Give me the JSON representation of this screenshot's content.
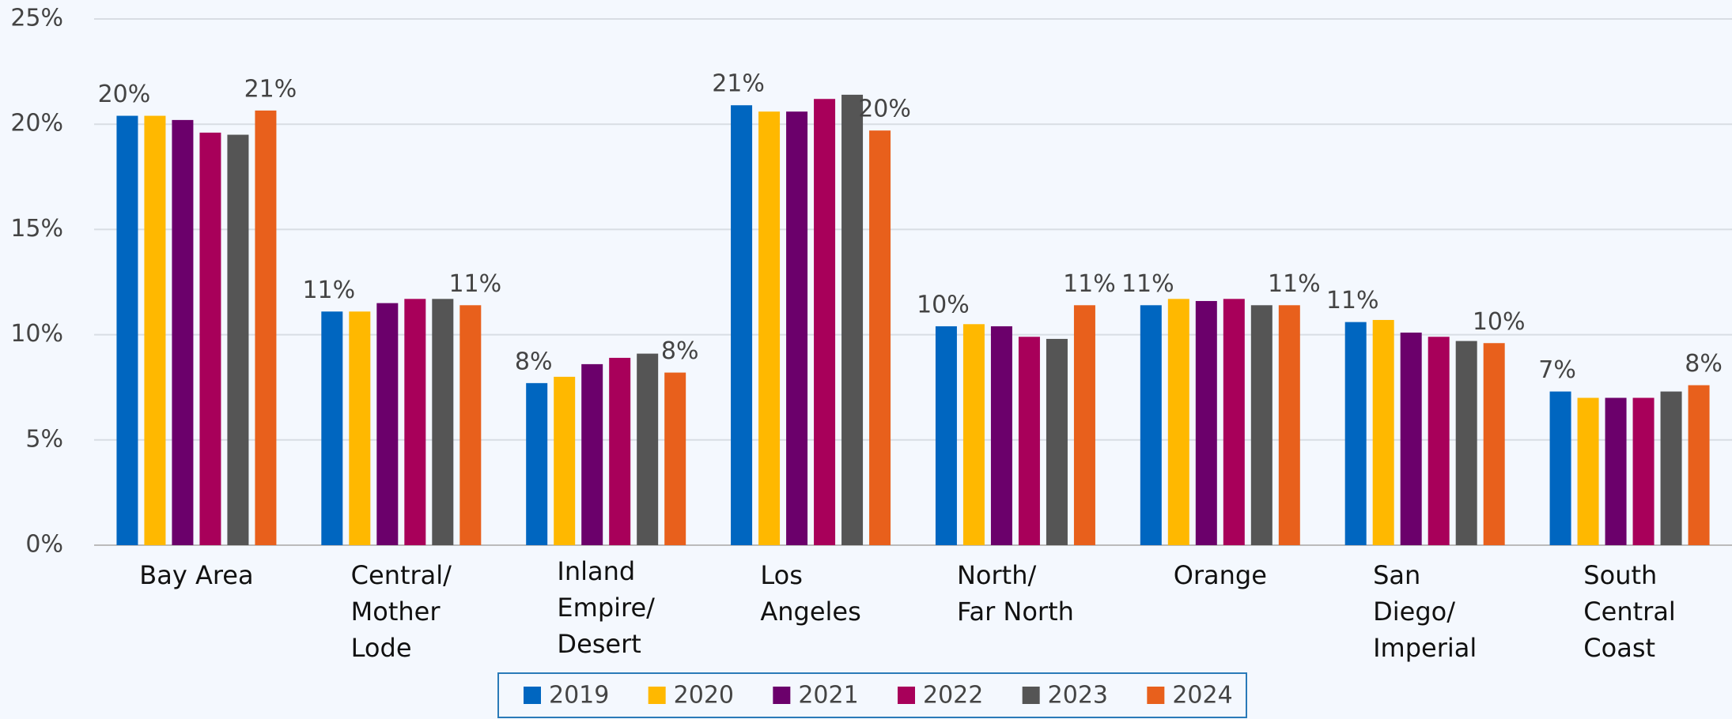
{
  "chart_data": {
    "type": "bar",
    "categories": [
      "Bay Area",
      "Central/\nMother\nLode",
      "Inland\nEmpire/\nDesert",
      "Los\nAngeles",
      "North/\nFar North",
      "Orange",
      "San\nDiego/\nImperial",
      "South\nCentral\nCoast"
    ],
    "series": [
      {
        "name": "2019",
        "color": "#0066c0",
        "values": [
          20.4,
          11.1,
          7.7,
          20.9,
          10.4,
          11.4,
          10.6,
          7.3
        ],
        "value_labels": [
          "20%",
          "11%",
          "8%",
          "21%",
          "10%",
          "11%",
          "11%",
          "7%"
        ]
      },
      {
        "name": "2020",
        "color": "#ffb800",
        "values": [
          20.4,
          11.1,
          8.0,
          20.6,
          10.5,
          11.7,
          10.7,
          7.0
        ]
      },
      {
        "name": "2021",
        "color": "#6b006b",
        "values": [
          20.2,
          11.5,
          8.6,
          20.6,
          10.4,
          11.6,
          10.1,
          7.0
        ]
      },
      {
        "name": "2022",
        "color": "#a8005a",
        "values": [
          19.6,
          11.7,
          8.9,
          21.2,
          9.9,
          11.7,
          9.9,
          7.0
        ]
      },
      {
        "name": "2023",
        "color": "#555555",
        "values": [
          19.5,
          11.7,
          9.1,
          21.4,
          9.8,
          11.4,
          9.7,
          7.3
        ]
      },
      {
        "name": "2024",
        "color": "#e8601c",
        "values": [
          20.65,
          11.4,
          8.2,
          19.7,
          11.4,
          11.4,
          9.6,
          7.6
        ],
        "value_labels": [
          "21%",
          "11%",
          "8%",
          "20%",
          "11%",
          "11%",
          "10%",
          "8%"
        ]
      }
    ],
    "ylim": [
      0,
      25
    ],
    "yticks": [
      {
        "value": 0,
        "label": "0%"
      },
      {
        "value": 5,
        "label": "5%"
      },
      {
        "value": 10,
        "label": "10%"
      },
      {
        "value": 15,
        "label": "15%"
      },
      {
        "value": 20,
        "label": "20%"
      },
      {
        "value": 25,
        "label": "25%"
      }
    ],
    "grid": true,
    "legend": "bottom"
  }
}
